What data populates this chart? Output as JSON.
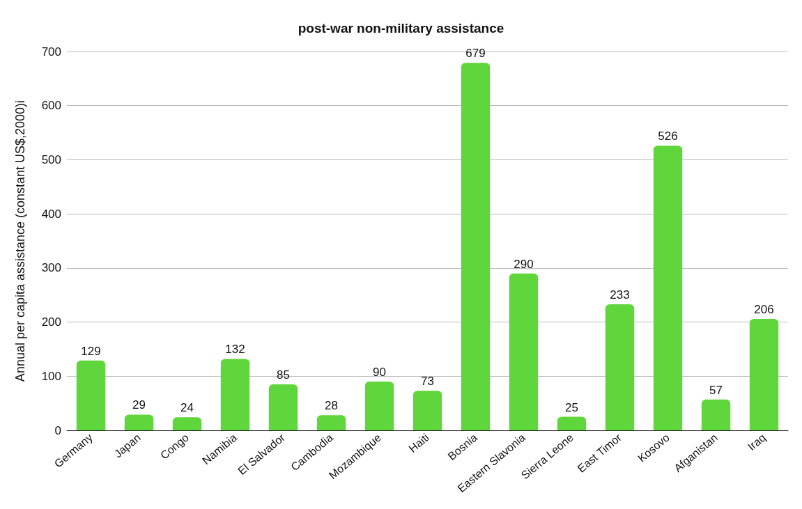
{
  "chart_data": {
    "type": "bar",
    "title": "post-war non-military assistance",
    "ylabel": "Annual per capita assistance (constant US$,2000)i",
    "categories": [
      "Germany",
      "Japan",
      "Congo",
      "Namibia",
      "El Salvador",
      "Cambodia",
      "Mozambique",
      "Haiti",
      "Bosnia",
      "Eastern Slavonia",
      "Sierra Leone",
      "East Timor",
      "Kosovo",
      "Afganistan",
      "Iraq"
    ],
    "values": [
      129,
      29,
      24,
      132,
      85,
      28,
      90,
      73,
      679,
      290,
      25,
      233,
      526,
      57,
      206
    ],
    "color": "#5fd63b",
    "ylim": [
      0,
      700
    ],
    "yticks": [
      0,
      100,
      200,
      300,
      400,
      500,
      600,
      700
    ],
    "grid": "y",
    "data_labels": true
  }
}
